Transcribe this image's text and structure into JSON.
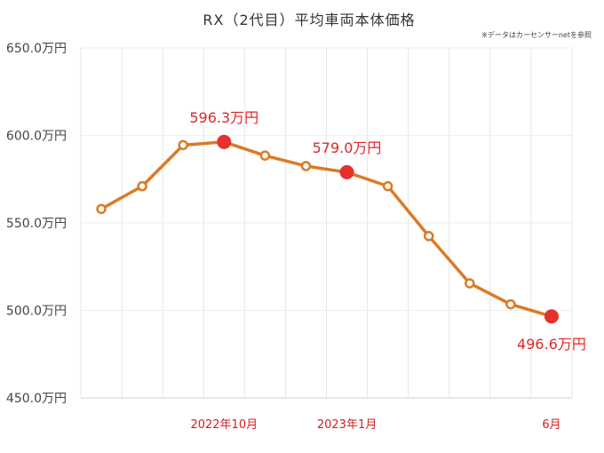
{
  "chart_data": {
    "type": "line",
    "title": "RX（2代目）平均車両本体価格",
    "note": "※データはカーセンサーnetを参照",
    "ylim": [
      450,
      650
    ],
    "y_ticks": [
      650.0,
      600.0,
      550.0,
      500.0,
      450.0
    ],
    "y_tick_labels": [
      "650.0万円",
      "600.0万円",
      "550.0万円",
      "500.0万円",
      "450.0万円"
    ],
    "x_labels": [
      {
        "index": 3,
        "label": "2022年10月"
      },
      {
        "index": 6,
        "label": "2023年1月"
      },
      {
        "index": 11,
        "label": "6月"
      }
    ],
    "series": [
      {
        "values": [
          558,
          571,
          594.5,
          596.3,
          588.5,
          582.5,
          579.0,
          571,
          542.5,
          515.5,
          503.5,
          496.6
        ],
        "highlight": [
          3,
          6,
          11
        ],
        "highlight_labels": [
          "596.3万円",
          "579.0万円",
          "496.6万円"
        ]
      }
    ],
    "colors": {
      "line": "#dc7a26",
      "highlight": "#e5312e",
      "grid": "#e6e6e6",
      "x_label": "#d21f1f",
      "data_label": "#e02626"
    },
    "grid": true,
    "legend": "none"
  }
}
